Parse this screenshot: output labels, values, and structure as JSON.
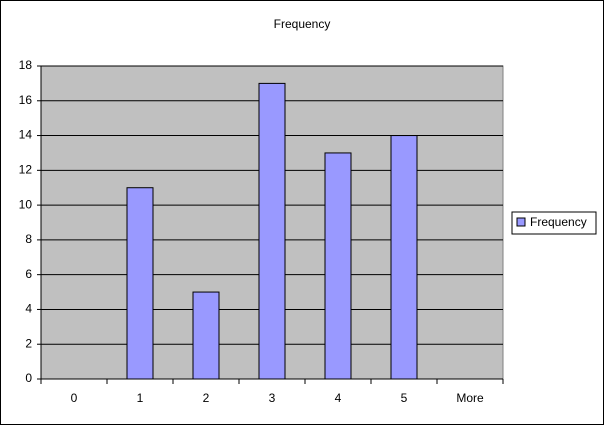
{
  "chart_data": {
    "type": "bar",
    "title": "Frequency",
    "categories": [
      "0",
      "1",
      "2",
      "3",
      "4",
      "5",
      "More"
    ],
    "series": [
      {
        "name": "Frequency",
        "color": "#9999ff",
        "values": [
          0,
          11,
          5,
          17,
          13,
          14,
          0
        ]
      }
    ],
    "ylim": [
      0,
      18
    ],
    "yticks": [
      0,
      2,
      4,
      6,
      8,
      10,
      12,
      14,
      16,
      18
    ],
    "grid": true,
    "legend": "right"
  }
}
